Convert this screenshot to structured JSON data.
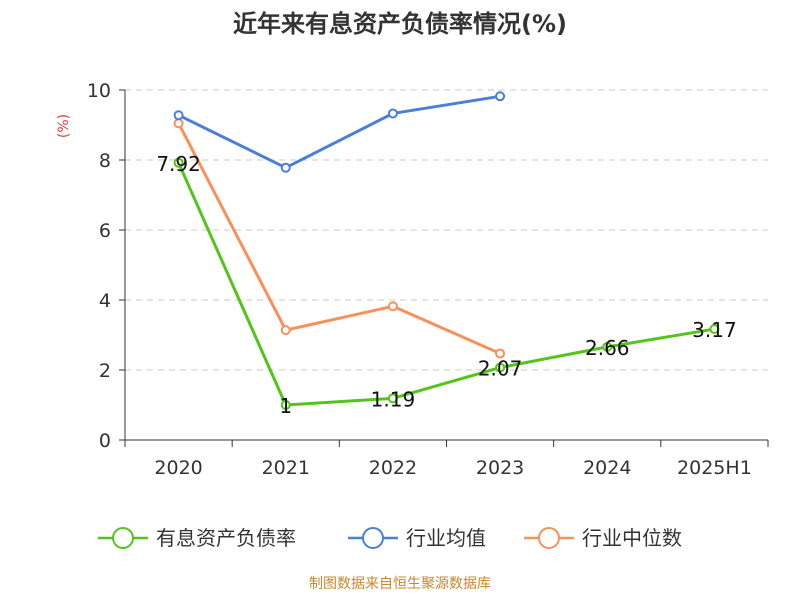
{
  "chart_data": {
    "type": "line",
    "title": "近年来有息资产负债率情况(%)",
    "ylabel": "(%)",
    "xlabel": "",
    "categories": [
      "2020",
      "2021",
      "2022",
      "2023",
      "2024",
      "2025H1"
    ],
    "ylim": [
      0,
      10
    ],
    "yticks": [
      0,
      2,
      4,
      6,
      8,
      10
    ],
    "grid": true,
    "legend_position": "bottom",
    "series": [
      {
        "name": "有息资产负债率",
        "color": "#52c41a",
        "values": [
          7.92,
          1,
          1.19,
          2.07,
          2.66,
          3.17
        ],
        "labels": [
          "7.92",
          "1",
          "1.19",
          "2.07",
          "2.66",
          "3.17"
        ]
      },
      {
        "name": "行业均值",
        "color": "#4a7fd8",
        "values": [
          9.28,
          7.78,
          9.33,
          9.82,
          null,
          null
        ]
      },
      {
        "name": "行业中位数",
        "color": "#f7915b",
        "values": [
          9.05,
          3.14,
          3.82,
          2.47,
          null,
          null
        ]
      }
    ]
  },
  "source": "制图数据来自恒生聚源数据库"
}
